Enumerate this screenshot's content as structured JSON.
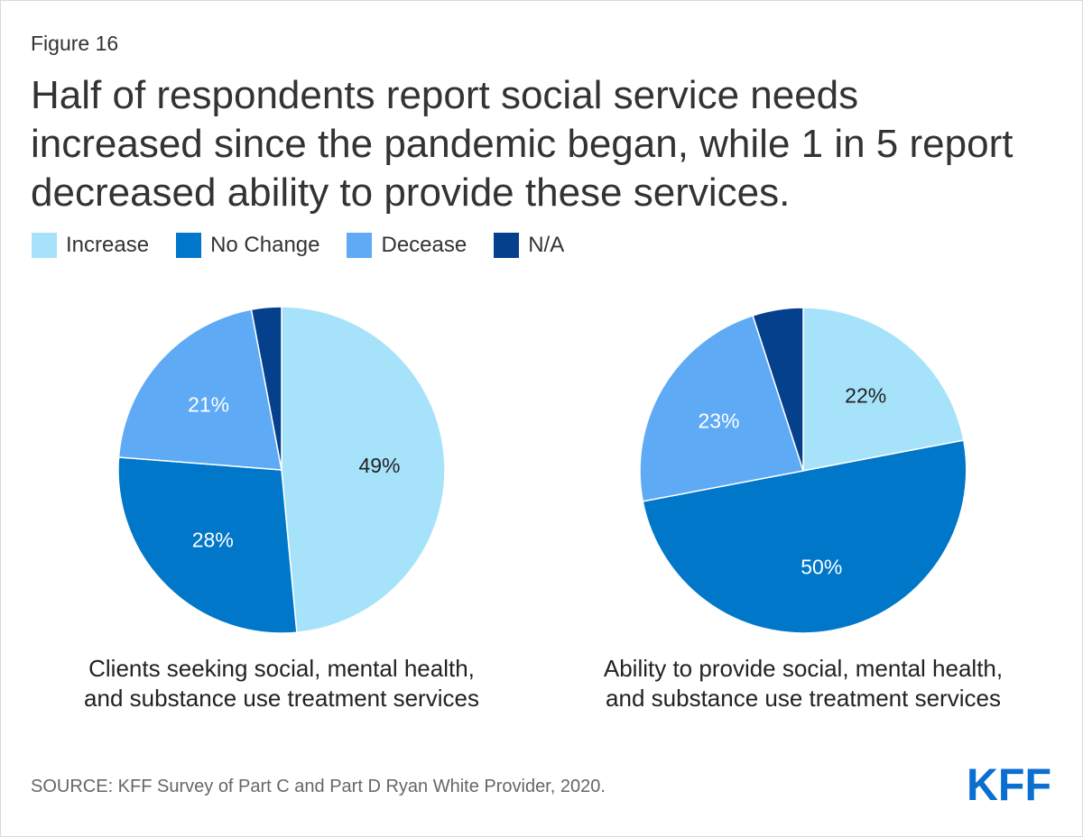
{
  "figure_label": "Figure 16",
  "title": "Half of respondents report social service needs increased since the pandemic began, while 1 in 5 report decreased ability to provide these services.",
  "legend": [
    {
      "label": "Increase",
      "color": "#a6e3fb"
    },
    {
      "label": "No Change",
      "color": "#0077c8"
    },
    {
      "label": "Decease",
      "color": "#5eaaf5"
    },
    {
      "label": "N/A",
      "color": "#05408c"
    }
  ],
  "chart_data": [
    {
      "type": "pie",
      "title": "Clients seeking social, mental health, and substance use treatment services",
      "labels": [
        "Increase",
        "No Change",
        "Decease",
        "N/A"
      ],
      "values": [
        49,
        28,
        21,
        3
      ],
      "data_labels": [
        "49%",
        "28%",
        "21%",
        ""
      ],
      "colors": [
        "#a6e3fb",
        "#0077c8",
        "#5eaaf5",
        "#05408c"
      ]
    },
    {
      "type": "pie",
      "title": "Ability to provide social, mental health, and substance use treatment services",
      "labels": [
        "Increase",
        "No Change",
        "Decease",
        "N/A"
      ],
      "values": [
        22,
        50,
        23,
        5
      ],
      "data_labels": [
        "22%",
        "50%",
        "23%",
        ""
      ],
      "colors": [
        "#a6e3fb",
        "#0077c8",
        "#5eaaf5",
        "#05408c"
      ]
    }
  ],
  "captions": {
    "pie1_line1": "Clients seeking social, mental health,",
    "pie1_line2": "and substance use treatment services",
    "pie2_line1": "Ability to provide social, mental health,",
    "pie2_line2": "and substance use treatment services"
  },
  "source": "SOURCE: KFF Survey of Part C and Part D Ryan White Provider, 2020.",
  "logo_text": "KFF",
  "colors": {
    "title_text": "#333333",
    "logo": "#0a6fd0"
  }
}
